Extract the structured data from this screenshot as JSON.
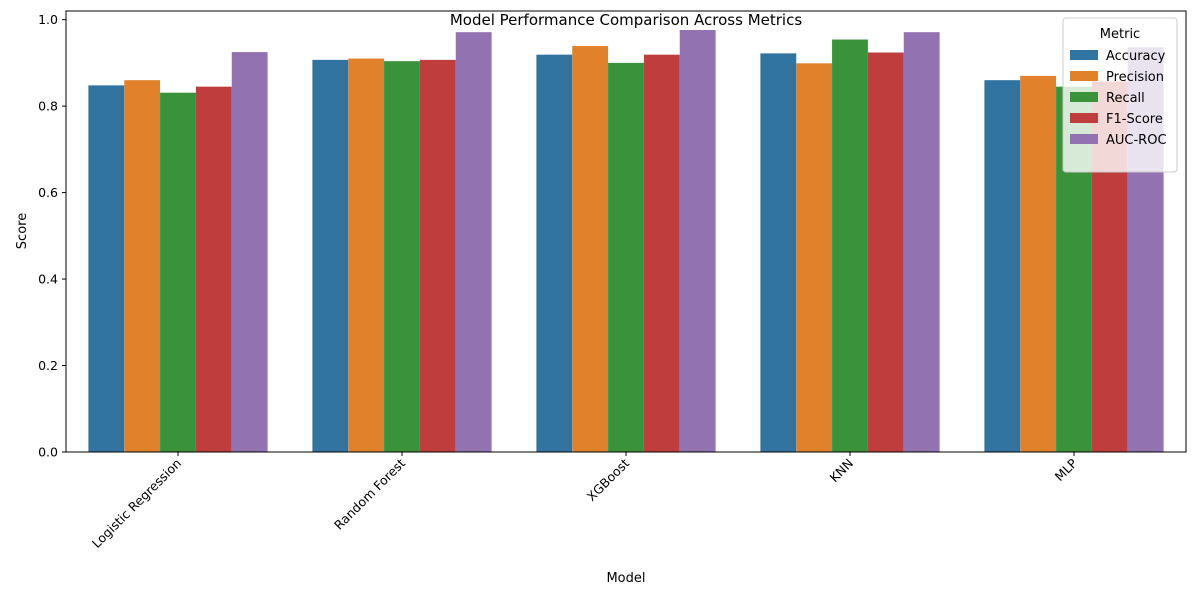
{
  "chart_data": {
    "type": "bar",
    "title": "Model Performance Comparison Across Metrics",
    "xlabel": "Model",
    "ylabel": "Score",
    "ylim": [
      0,
      1.02
    ],
    "yticks": [
      "0.0",
      "0.2",
      "0.4",
      "0.6",
      "0.8",
      "1.0"
    ],
    "grid": false,
    "legend": {
      "title": "Metric",
      "placement": "top-right"
    },
    "categories": [
      "Logistic Regression",
      "Random Forest",
      "XGBoost",
      "KNN",
      "MLP"
    ],
    "series": [
      {
        "name": "Accuracy",
        "color": "#3274a1",
        "values": [
          0.848,
          0.907,
          0.919,
          0.922,
          0.86
        ]
      },
      {
        "name": "Precision",
        "color": "#e1812c",
        "values": [
          0.86,
          0.91,
          0.939,
          0.899,
          0.87
        ]
      },
      {
        "name": "Recall",
        "color": "#3a923a",
        "values": [
          0.831,
          0.904,
          0.9,
          0.954,
          0.845
        ]
      },
      {
        "name": "F1-Score",
        "color": "#c03d3e",
        "values": [
          0.845,
          0.907,
          0.919,
          0.924,
          0.857
        ]
      },
      {
        "name": "AUC-ROC",
        "color": "#9372b2",
        "values": [
          0.925,
          0.971,
          0.976,
          0.971,
          0.936
        ]
      }
    ]
  }
}
